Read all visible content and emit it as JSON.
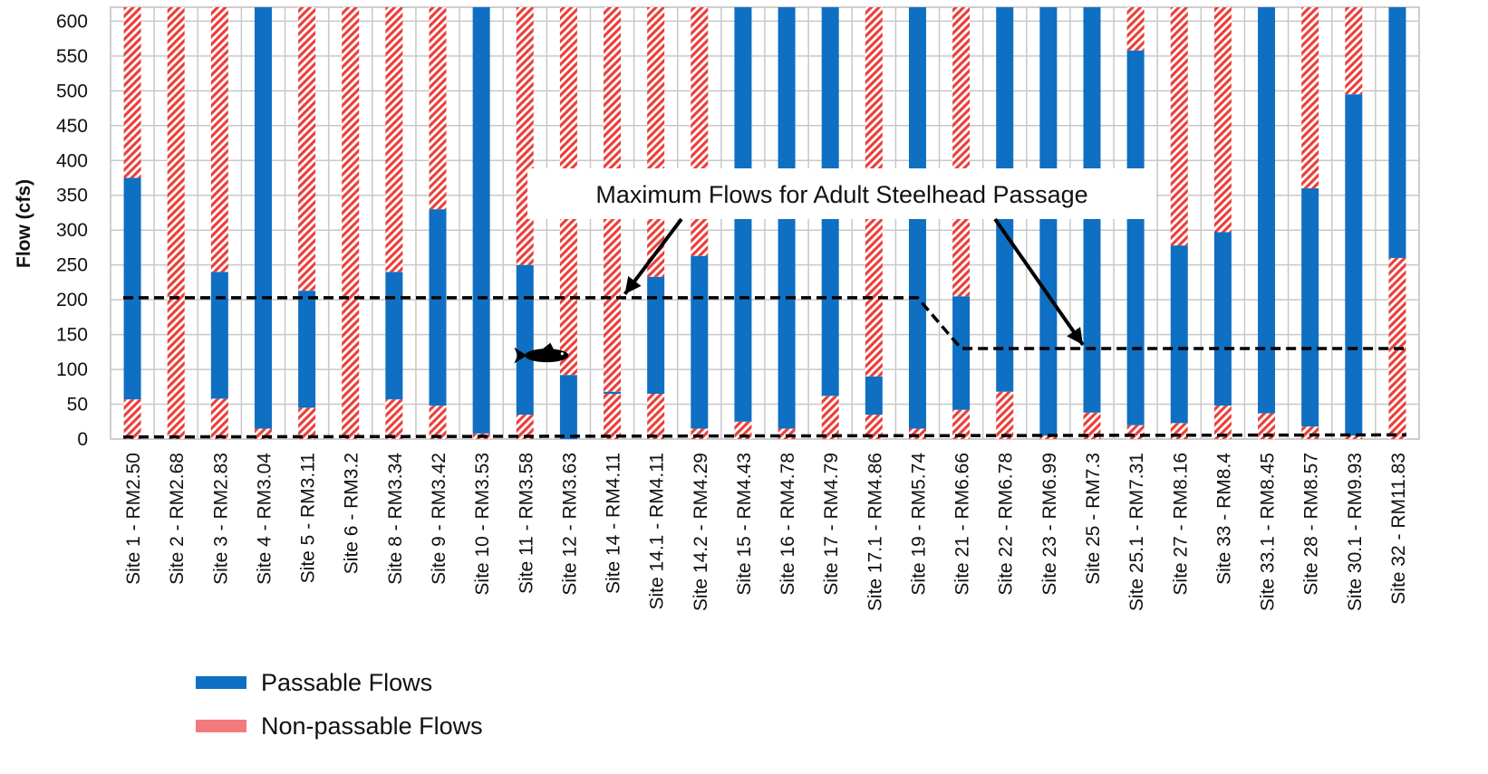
{
  "chart_data": {
    "type": "bar",
    "stacked": true,
    "ylabel": "Flow (cfs)",
    "xlabel": "",
    "ylim": [
      0,
      620
    ],
    "yticks": [
      0,
      50,
      100,
      150,
      200,
      250,
      300,
      350,
      400,
      450,
      500,
      550,
      600
    ],
    "grid": true,
    "categories": [
      "Site 1 - RM2.50",
      "Site 2 - RM2.68",
      "Site 3 - RM2.83",
      "Site 4 - RM3.04",
      "Site 5 - RM3.11",
      "Site 6 - RM3.2",
      "Site 8 - RM3.34",
      "Site 9 - RM3.42",
      "Site 10 - RM3.53",
      "Site 11 - RM3.58",
      "Site 12 - RM3.63",
      "Site 14 - RM4.11",
      "Site 14.1 - RM4.11",
      "Site 14.2 - RM4.29",
      "Site 15 - RM4.43",
      "Site 16 - RM4.78",
      "Site 17 - RM4.79",
      "Site 17.1 - RM4.86",
      "Site 19 - RM5.74",
      "Site 21 - RM6.66",
      "Site 22 - RM6.78",
      "Site 23 - RM6.99",
      "Site 25 - RM7.3",
      "Site 25.1 - RM7.31",
      "Site 27 - RM8.16",
      "Site 33 - RM8.4",
      "Site 33.1 - RM8.45",
      "Site 28 - RM8.57",
      "Site 30.1 - RM9.93",
      "Site 32 - RM11.83"
    ],
    "passable_min": [
      57,
      0,
      58,
      15,
      45,
      0,
      57,
      48,
      8,
      35,
      0,
      65,
      65,
      15,
      25,
      15,
      62,
      35,
      15,
      42,
      68,
      5,
      38,
      20,
      23,
      48,
      37,
      18,
      5,
      260
    ],
    "passable_max": [
      375,
      0,
      240,
      620,
      213,
      0,
      240,
      330,
      620,
      250,
      92,
      68,
      233,
      263,
      620,
      620,
      620,
      90,
      620,
      205,
      620,
      620,
      620,
      558,
      278,
      297,
      620,
      360,
      495,
      620
    ],
    "series": [
      {
        "name": "Passable Flows",
        "color": "#0f6fc2"
      },
      {
        "name": "Non-passable Flows",
        "color": "#f47b7b"
      }
    ],
    "max_flow_line": [
      {
        "x": "Site 1 - RM2.50",
        "y": 203
      },
      {
        "x": "Site 19 - RM5.74",
        "y": 203
      },
      {
        "x": "Site 21 - RM6.66",
        "y": 130
      },
      {
        "x": "Site 32 - RM11.83",
        "y": 130
      }
    ],
    "min_flow_line": [
      {
        "x": "Site 1 - RM2.50",
        "y": 3
      },
      {
        "x": "Site 32 - RM11.83",
        "y": 6
      }
    ],
    "annotation": {
      "text": "Maximum Flows for Adult Steelhead Passage",
      "arrow_targets": [
        {
          "x": "Site 14 - RM4.11",
          "y": 203
        },
        {
          "x": "Site 25 - RM7.3",
          "y": 130
        }
      ]
    },
    "fish_icon": {
      "name": "fish-icon",
      "x_between": [
        "Site 11 - RM3.58",
        "Site 12 - RM3.63"
      ],
      "y": 120
    }
  }
}
